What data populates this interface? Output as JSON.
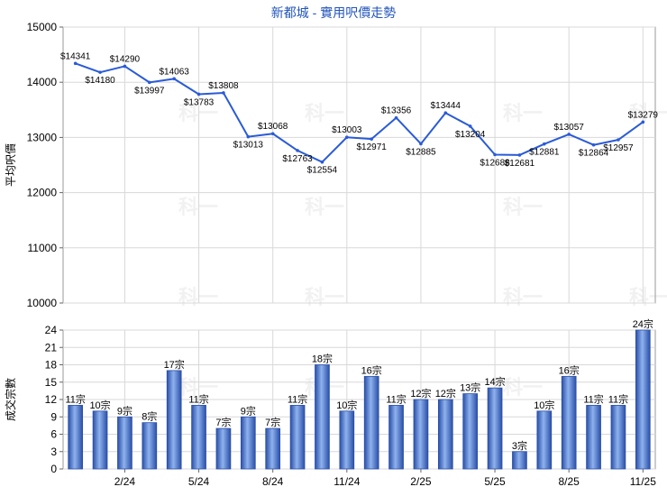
{
  "title": "新都城 - 實用呎價走勢",
  "watermark": "科一",
  "colors": {
    "line": "#2a5bd7",
    "bar_dark": "#2a4fa8",
    "bar_light": "#8fb2ee",
    "grid": "#d8d8d8",
    "title": "#2255bb"
  },
  "chart_data": [
    {
      "type": "line",
      "ylabel": "平均呎價",
      "ylim": [
        10000,
        15000
      ],
      "yticks": [
        "10000",
        "11000",
        "12000",
        "13000",
        "14000",
        "15000"
      ],
      "values": [
        14341,
        14180,
        14290,
        13997,
        14063,
        13783,
        13808,
        13013,
        13068,
        12763,
        12554,
        13003,
        12971,
        13356,
        12885,
        13444,
        13204,
        12688,
        12681,
        12881,
        13057,
        12864,
        12957,
        13279
      ],
      "labels": [
        "$14341",
        "$14180",
        "$14290",
        "$13997",
        "$14063",
        "$13783",
        "$13808",
        "$13013",
        "$13068",
        "$12763",
        "$12554",
        "$13003",
        "$12971",
        "$13356",
        "$12885",
        "$13444",
        "$13204",
        "$12688",
        "$12681",
        "$12881",
        "$13057",
        "$12864",
        "$12957",
        "$13279"
      ]
    },
    {
      "type": "bar",
      "ylabel": "成交宗數",
      "ylim": [
        0,
        24
      ],
      "yticks": [
        "0",
        "3",
        "6",
        "9",
        "12",
        "15",
        "18",
        "21",
        "24"
      ],
      "values": [
        11,
        10,
        9,
        8,
        17,
        11,
        7,
        9,
        7,
        11,
        18,
        10,
        16,
        11,
        12,
        12,
        13,
        14,
        3,
        10,
        16,
        11,
        11,
        24
      ],
      "labels": [
        "11宗",
        "10宗",
        "9宗",
        "8宗",
        "17宗",
        "11宗",
        "7宗",
        "9宗",
        "7宗",
        "11宗",
        "18宗",
        "10宗",
        "16宗",
        "11宗",
        "12宗",
        "12宗",
        "13宗",
        "14宗",
        "3宗",
        "10宗",
        "16宗",
        "11宗",
        "11宗",
        "24宗"
      ],
      "xticks": [
        {
          "label": "2/24",
          "index": 2
        },
        {
          "label": "5/24",
          "index": 5
        },
        {
          "label": "8/24",
          "index": 8
        },
        {
          "label": "11/24",
          "index": 11
        },
        {
          "label": "2/25",
          "index": 14
        },
        {
          "label": "5/25",
          "index": 17
        },
        {
          "label": "8/25",
          "index": 20
        },
        {
          "label": "11/25",
          "index": 23
        }
      ]
    }
  ]
}
